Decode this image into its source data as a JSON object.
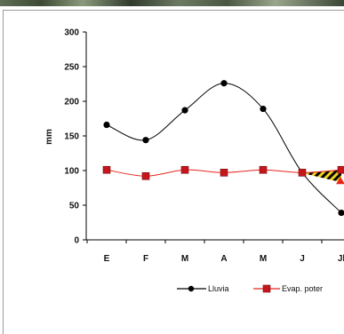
{
  "chart_data": {
    "type": "line",
    "categories": [
      "E",
      "F",
      "M",
      "A",
      "M",
      "J",
      "Jl"
    ],
    "series": [
      {
        "name": "Lluvia",
        "values": [
          166,
          144,
          187,
          226,
          189,
          97,
          39
        ],
        "color": "#000000",
        "marker": "circle"
      },
      {
        "name": "Evap. poter",
        "values": [
          101,
          92,
          101,
          97,
          101,
          97,
          101
        ],
        "color": "#e8261c",
        "marker": "square"
      }
    ],
    "ylabel": "mm",
    "xlabel": "",
    "ylim": [
      0,
      300
    ],
    "yticks": [
      0,
      50,
      100,
      150,
      200,
      250,
      300
    ],
    "legend_position": "bottom",
    "grid": false
  },
  "colors": {
    "lluvia": "#000000",
    "evap_line": "#e8261c",
    "evap_marker": "#c4161c",
    "hatch_dark": "#000000",
    "hatch_light": "#f2d21c"
  }
}
